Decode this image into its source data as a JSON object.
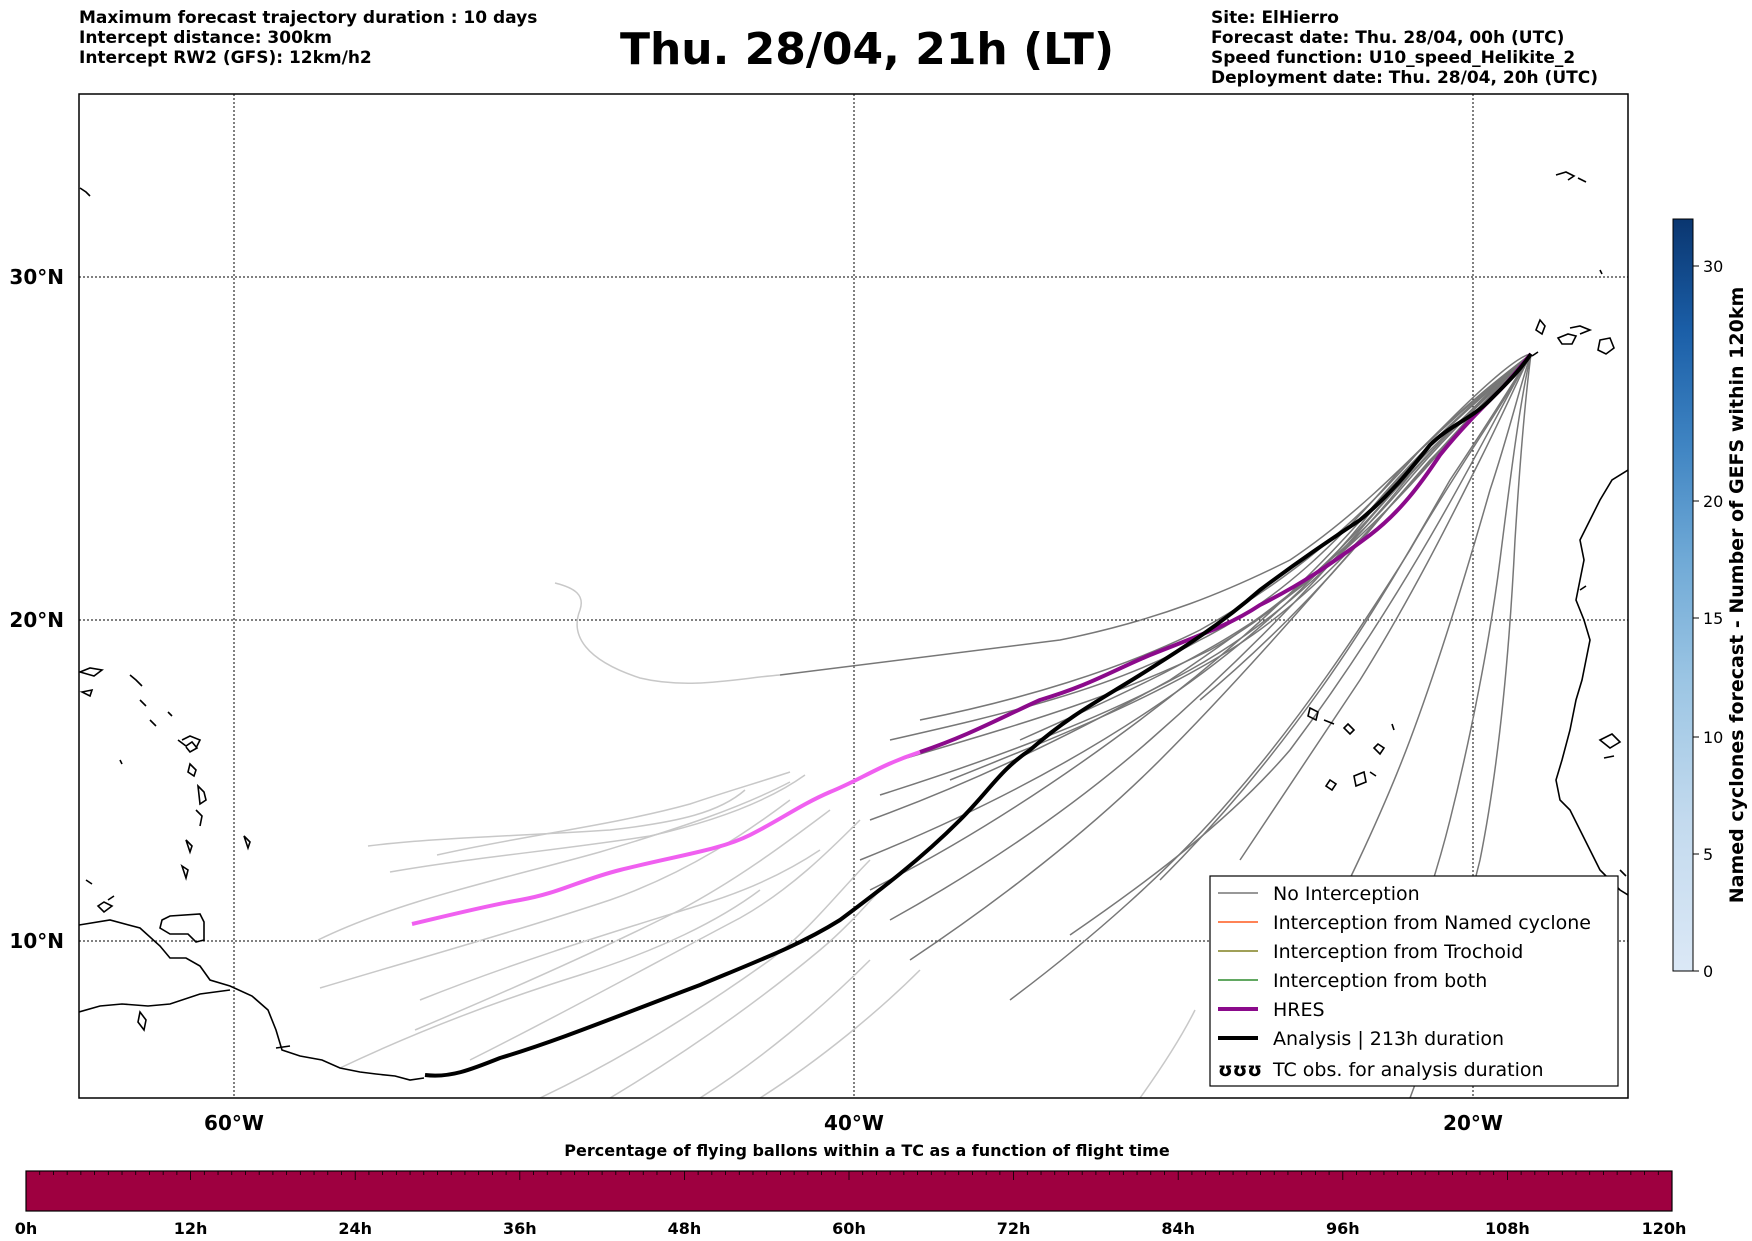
{
  "header": {
    "left_lines": [
      "Maximum forecast trajectory duration : 10 days",
      "Intercept distance: 300km",
      "Intercept RW2 (GFS):  12km/h2"
    ],
    "right_lines": [
      "Site: ElHierro",
      "Forecast date: Thu. 28/04, 00h (UTC)",
      "Speed function: U10_speed_Helikite_2",
      "Deployment date: Thu. 28/04, 20h (UTC)"
    ],
    "title": "Thu. 28/04, 21h (LT)"
  },
  "map": {
    "lon_labels": [
      "60°W",
      "40°W",
      "20°W"
    ],
    "lat_labels": [
      "30°N",
      "20°N",
      "10°N"
    ],
    "grid": "dotted",
    "colors": {
      "no_interception": "#777777",
      "named_cyclone": "#ff5a1f",
      "trochoid": "#808020",
      "both": "#2e8b2e",
      "hres": "#8b0a8b",
      "hres_early": "#f060f0",
      "analysis": "#000000",
      "faded": "#c8c8c8"
    },
    "legend": [
      {
        "label": "No Interception",
        "color": "#777777"
      },
      {
        "label": "Interception from Named cyclone",
        "color": "#ff5a1f"
      },
      {
        "label": "Interception from Trochoid",
        "color": "#808020"
      },
      {
        "label": "Interception from both",
        "color": "#2e8b2e"
      },
      {
        "label": "HRES",
        "color": "#8b0a8b"
      },
      {
        "label": "Analysis | 213h duration",
        "color": "#000000"
      },
      {
        "label": "TC obs. for analysis duration",
        "symbol": "ʊʊʊ"
      }
    ]
  },
  "colorbar": {
    "label": "Named cyclones forecast - Number of GEFS within 120km",
    "ticks": [
      "0",
      "5",
      "10",
      "15",
      "20",
      "30"
    ],
    "colors": [
      "#dbe8f6",
      "#c3daee",
      "#9dc6e4",
      "#6fa9d6",
      "#3f84c2",
      "#1b5fa8",
      "#0a3670"
    ]
  },
  "bottom_bar": {
    "title": "Percentage of flying ballons within a TC as a function of flight time",
    "ticks": [
      "0h",
      "12h",
      "24h",
      "36h",
      "48h",
      "60h",
      "72h",
      "84h",
      "96h",
      "108h",
      "120h"
    ],
    "color": "#9e0040"
  }
}
